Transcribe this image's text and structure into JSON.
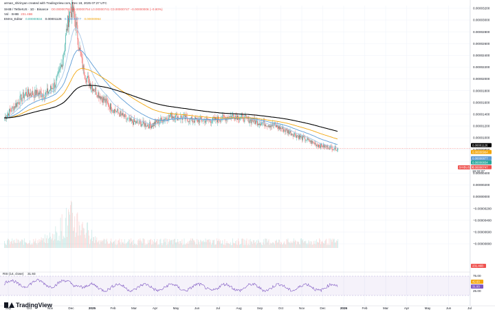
{
  "header": {
    "credit": "arman_shirinyan created with TradingView.com, Dec 18, 2025 07:27 UTC",
    "symbol_line": "SHIB / TetherUS · 1D · Binance",
    "ohlc": "O0.00000751 H0.00000754 L0.00000741 C0.00000747 −0.00000006 (−0.80%)",
    "vol_label": "Vol · SHIB",
    "vol_value": "231.46B",
    "ema_label": "EMAs_Editor",
    "ema_values": [
      "0.00000834",
      "0.00001126",
      "0.00000877",
      "0.00000964"
    ]
  },
  "colors": {
    "up": "#26a69a",
    "down": "#ef5350",
    "ema_fast": "#5b9bd5",
    "ema_mid": "#f2a60c",
    "ema_slow": "#000000",
    "ema_light": "#a7c7e7",
    "rsi": "#7e57c2"
  },
  "chart_data": {
    "type": "candlestick",
    "x_range": [
      "Sep 2024",
      "Jul 2026"
    ],
    "y_range": [
      -1e-06,
      3.3e-06
    ],
    "price_axis_labels": [
      "0.00003200",
      "0.00003000",
      "0.00002800",
      "0.00002600",
      "0.00002400",
      "0.00002200",
      "0.00002000",
      "0.00001800",
      "0.00001600",
      "0.00001400",
      "0.00001200",
      "0.00001000",
      "0.00000800",
      "0.00000600",
      "0.00000400",
      "0.00000200",
      "0.00000000",
      "−0.00000200",
      "−0.00000400",
      "−0.00000600",
      "−0.00000800"
    ],
    "time_axis_labels": [
      "Sep",
      "Oct",
      "Nov",
      "Dec",
      "2025",
      "Feb",
      "Mar",
      "Apr",
      "May",
      "Jun",
      "Jul",
      "Aug",
      "Sep",
      "Oct",
      "Nov",
      "Dec",
      "2026",
      "Feb",
      "Mar",
      "Apr",
      "May",
      "Jun",
      "Jul"
    ],
    "price_tags": [
      {
        "label": "0.00001126",
        "color": "#000000"
      },
      {
        "label": "0.00000964",
        "color": "#f2a60c"
      },
      {
        "label": "0.00000877",
        "color": "#5b9bd5"
      },
      {
        "label": "0.00000834",
        "color": "#26a69a"
      },
      {
        "label": "0.00000747",
        "color": "#ef5350"
      }
    ],
    "symbol_tag": "SHIBUSDT",
    "countdown": "16:32:37",
    "volume_tag": "231.46B",
    "monthly_close": [
      1.34e-05,
      1.75e-05,
      1.75e-05,
      2.1e-05,
      1.95e-05,
      1.55e-05,
      1.28e-05,
      1.21e-05,
      1.38e-05,
      1.3e-05,
      1.3e-05,
      1.38e-05,
      1.28e-05,
      1.2e-05,
      1.04e-05,
      8.8e-06,
      8.1e-06
    ],
    "rsi": {
      "label": "RSI (14, close)",
      "value": "31.93",
      "levels": [
        "75.00",
        "42.93",
        "25.00"
      ],
      "value_tag": "31.93"
    }
  },
  "branding": {
    "logo_text": "TradingView"
  }
}
